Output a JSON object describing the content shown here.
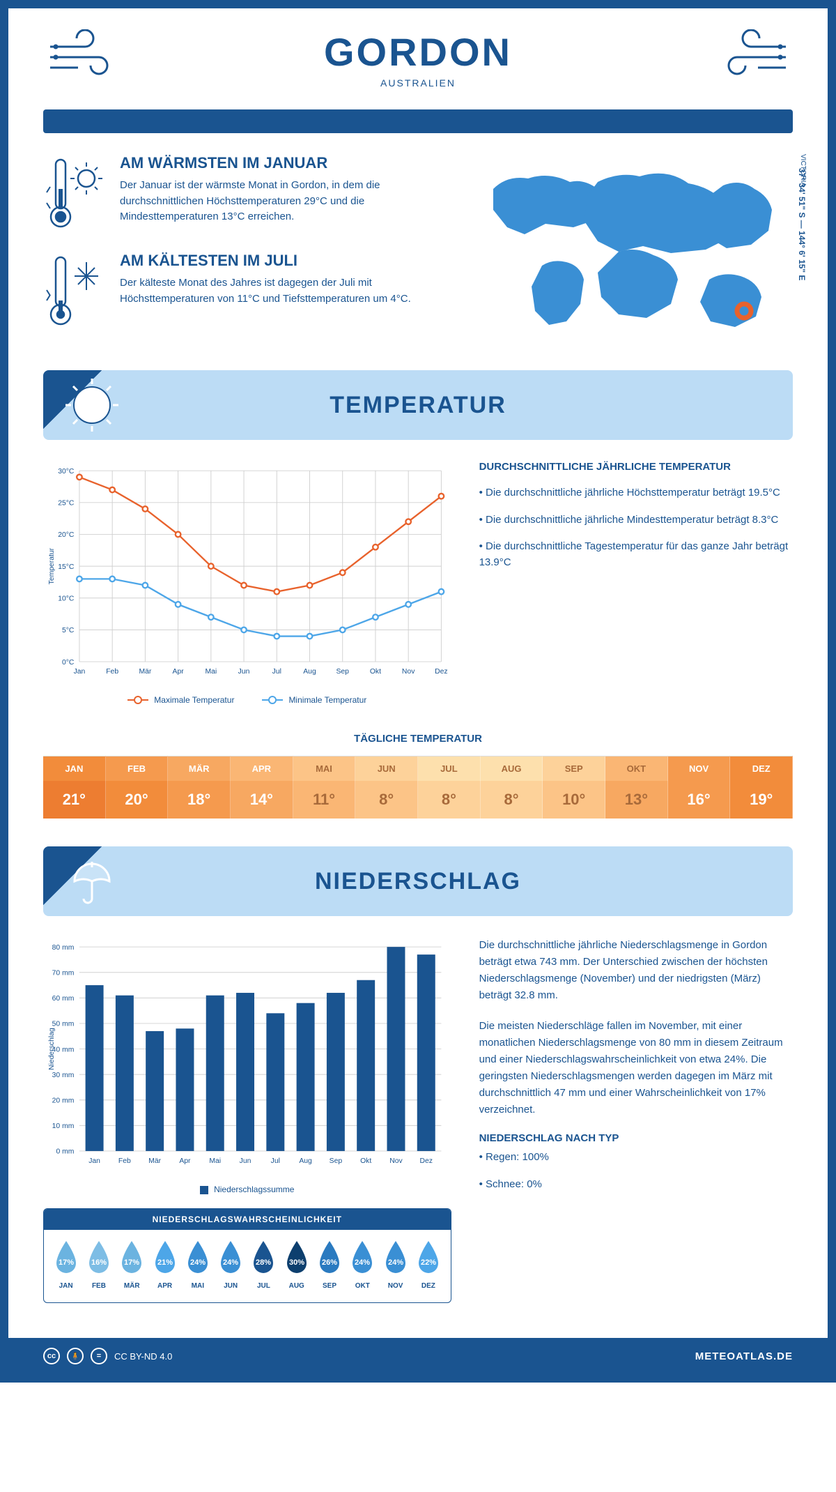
{
  "header": {
    "title": "GORDON",
    "subtitle": "AUSTRALIEN"
  },
  "coords": "37° 34' 51\" S — 144° 6' 15\" E",
  "region": "VICTORIA",
  "facts": {
    "warm": {
      "title": "AM WÄRMSTEN IM JANUAR",
      "text": "Der Januar ist der wärmste Monat in Gordon, in dem die durchschnittlichen Höchsttemperaturen 29°C und die Mindesttemperaturen 13°C erreichen."
    },
    "cold": {
      "title": "AM KÄLTESTEN IM JULI",
      "text": "Der kälteste Monat des Jahres ist dagegen der Juli mit Höchsttemperaturen von 11°C und Tiefsttemperaturen um 4°C."
    }
  },
  "sections": {
    "temperature": "TEMPERATUR",
    "precipitation": "NIEDERSCHLAG"
  },
  "temp_chart": {
    "type": "line",
    "x_labels": [
      "Jan",
      "Feb",
      "Mär",
      "Apr",
      "Mai",
      "Jun",
      "Jul",
      "Aug",
      "Sep",
      "Okt",
      "Nov",
      "Dez"
    ],
    "ylabel": "Temperatur",
    "ylim": [
      0,
      30
    ],
    "ytick_step": 5,
    "ytick_suffix": "°C",
    "grid_color": "#d0d0d0",
    "background": "#ffffff",
    "series": [
      {
        "name": "Maximale Temperatur",
        "color": "#e8622c",
        "values": [
          29,
          27,
          24,
          20,
          15,
          12,
          11,
          12,
          14,
          18,
          22,
          26
        ]
      },
      {
        "name": "Minimale Temperatur",
        "color": "#4da6e8",
        "values": [
          13,
          13,
          12,
          9,
          7,
          5,
          4,
          4,
          5,
          7,
          9,
          11
        ]
      }
    ]
  },
  "temp_info": {
    "title": "DURCHSCHNITTLICHE JÄHRLICHE TEMPERATUR",
    "bullets": [
      "• Die durchschnittliche jährliche Höchsttemperatur beträgt 19.5°C",
      "• Die durchschnittliche jährliche Mindesttemperatur beträgt 8.3°C",
      "• Die durchschnittliche Tagestemperatur für das ganze Jahr beträgt 13.9°C"
    ]
  },
  "daily_temp": {
    "title": "TÄGLICHE TEMPERATUR",
    "months": [
      "JAN",
      "FEB",
      "MÄR",
      "APR",
      "MAI",
      "JUN",
      "JUL",
      "AUG",
      "SEP",
      "OKT",
      "NOV",
      "DEZ"
    ],
    "values": [
      "21°",
      "20°",
      "18°",
      "14°",
      "11°",
      "8°",
      "8°",
      "8°",
      "10°",
      "13°",
      "16°",
      "19°"
    ],
    "header_colors": [
      "#f28c3b",
      "#f59a4e",
      "#f7a861",
      "#fab674",
      "#fcc487",
      "#fdd29a",
      "#fde0ad",
      "#fde0ad",
      "#fdd29a",
      "#fab674",
      "#f59a4e",
      "#f28c3b"
    ],
    "value_colors": [
      "#ed7d31",
      "#f28c3b",
      "#f59a4e",
      "#f7a861",
      "#fab674",
      "#fcc487",
      "#fdd29a",
      "#fdd29a",
      "#fcc487",
      "#f7a861",
      "#f59a4e",
      "#f28c3b"
    ],
    "text_colors": [
      "#fff",
      "#fff",
      "#fff",
      "#fff",
      "#a86a3a",
      "#a86a3a",
      "#a86a3a",
      "#a86a3a",
      "#a86a3a",
      "#a86a3a",
      "#fff",
      "#fff"
    ]
  },
  "precip_chart": {
    "type": "bar",
    "x_labels": [
      "Jan",
      "Feb",
      "Mär",
      "Apr",
      "Mai",
      "Jun",
      "Jul",
      "Aug",
      "Sep",
      "Okt",
      "Nov",
      "Dez"
    ],
    "ylabel": "Niederschlag",
    "ylim": [
      0,
      80
    ],
    "ytick_step": 10,
    "ytick_suffix": " mm",
    "bar_color": "#1a5490",
    "grid_color": "#d0d0d0",
    "values": [
      65,
      61,
      47,
      48,
      61,
      62,
      54,
      58,
      62,
      67,
      80,
      77
    ],
    "legend": "Niederschlagssumme"
  },
  "precip_text": {
    "p1": "Die durchschnittliche jährliche Niederschlagsmenge in Gordon beträgt etwa 743 mm. Der Unterschied zwischen der höchsten Niederschlagsmenge (November) und der niedrigsten (März) beträgt 32.8 mm.",
    "p2": "Die meisten Niederschläge fallen im November, mit einer monatlichen Niederschlagsmenge von 80 mm in diesem Zeitraum und einer Niederschlagswahrscheinlichkeit von etwa 24%. Die geringsten Niederschlagsmengen werden dagegen im März mit durchschnittlich 47 mm und einer Wahrscheinlichkeit von 17% verzeichnet.",
    "type_title": "NIEDERSCHLAG NACH TYP",
    "types": [
      "• Regen: 100%",
      "• Schnee: 0%"
    ]
  },
  "prob": {
    "title": "NIEDERSCHLAGSWAHRSCHEINLICHKEIT",
    "months": [
      "JAN",
      "FEB",
      "MÄR",
      "APR",
      "MAI",
      "JUN",
      "JUL",
      "AUG",
      "SEP",
      "OKT",
      "NOV",
      "DEZ"
    ],
    "values": [
      "17%",
      "16%",
      "17%",
      "21%",
      "24%",
      "24%",
      "28%",
      "30%",
      "26%",
      "24%",
      "24%",
      "22%"
    ],
    "colors": [
      "#6bb3e0",
      "#7dbde5",
      "#6bb3e0",
      "#4da6e8",
      "#3a8fd4",
      "#3a8fd4",
      "#1a5490",
      "#0d3f6e",
      "#2a7ac0",
      "#3a8fd4",
      "#3a8fd4",
      "#4da6e8"
    ]
  },
  "footer": {
    "license": "CC BY-ND 4.0",
    "site": "METEOATLAS.DE"
  }
}
